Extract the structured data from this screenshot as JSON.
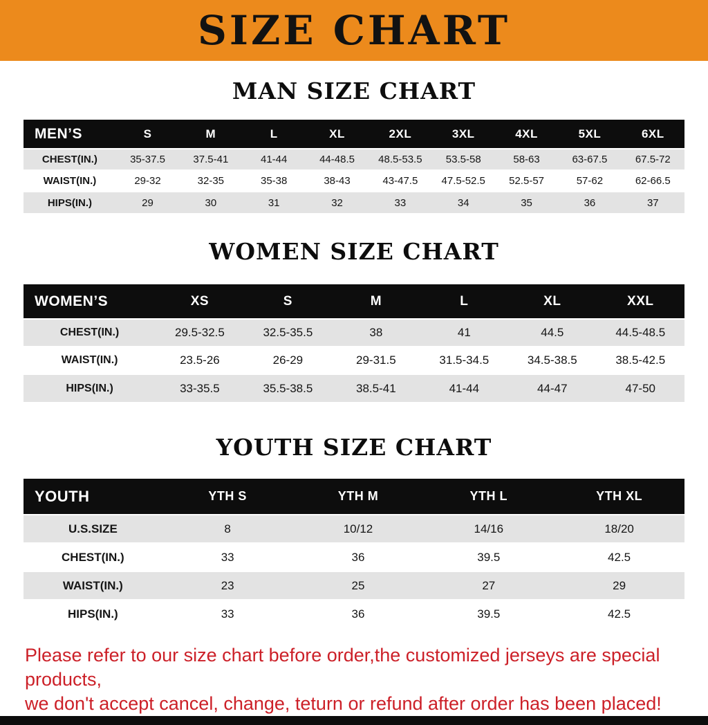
{
  "banner": {
    "title": "SIZE CHART"
  },
  "colors": {
    "banner_bg": "#ec8a1c",
    "table_header_bg": "#0d0d0d",
    "row_shade": "#e3e3e3",
    "footer_text": "#cc2028"
  },
  "chart_data": [
    {
      "type": "table",
      "title": "MAN SIZE CHART",
      "columns": [
        "MEN’S",
        "S",
        "M",
        "L",
        "XL",
        "2XL",
        "3XL",
        "4XL",
        "5XL",
        "6XL"
      ],
      "rows": [
        [
          "CHEST(IN.)",
          "35-37.5",
          "37.5-41",
          "41-44",
          "44-48.5",
          "48.5-53.5",
          "53.5-58",
          "58-63",
          "63-67.5",
          "67.5-72"
        ],
        [
          "WAIST(IN.)",
          "29-32",
          "32-35",
          "35-38",
          "38-43",
          "43-47.5",
          "47.5-52.5",
          "52.5-57",
          "57-62",
          "62-66.5"
        ],
        [
          "HIPS(IN.)",
          "29",
          "30",
          "31",
          "32",
          "33",
          "34",
          "35",
          "36",
          "37"
        ]
      ]
    },
    {
      "type": "table",
      "title": "WOMEN SIZE CHART",
      "columns": [
        "WOMEN’S",
        "XS",
        "S",
        "M",
        "L",
        "XL",
        "XXL"
      ],
      "rows": [
        [
          "CHEST(IN.)",
          "29.5-32.5",
          "32.5-35.5",
          "38",
          "41",
          "44.5",
          "44.5-48.5"
        ],
        [
          "WAIST(IN.)",
          "23.5-26",
          "26-29",
          "29-31.5",
          "31.5-34.5",
          "34.5-38.5",
          "38.5-42.5"
        ],
        [
          "HIPS(IN.)",
          "33-35.5",
          "35.5-38.5",
          "38.5-41",
          "41-44",
          "44-47",
          "47-50"
        ]
      ]
    },
    {
      "type": "table",
      "title": "YOUTH SIZE CHART",
      "columns": [
        "YOUTH",
        "YTH S",
        "YTH M",
        "YTH L",
        "YTH XL"
      ],
      "rows": [
        [
          "U.S.SIZE",
          "8",
          "10/12",
          "14/16",
          "18/20"
        ],
        [
          "CHEST(IN.)",
          "33",
          "36",
          "39.5",
          "42.5"
        ],
        [
          "WAIST(IN.)",
          "23",
          "25",
          "27",
          "29"
        ],
        [
          "HIPS(IN.)",
          "33",
          "36",
          "39.5",
          "42.5"
        ]
      ]
    }
  ],
  "footer": {
    "line1": "Please refer to our size chart before order,the customized jerseys are special products,",
    "line2": "we don't accept cancel, change, teturn or refund after order has been placed!"
  }
}
